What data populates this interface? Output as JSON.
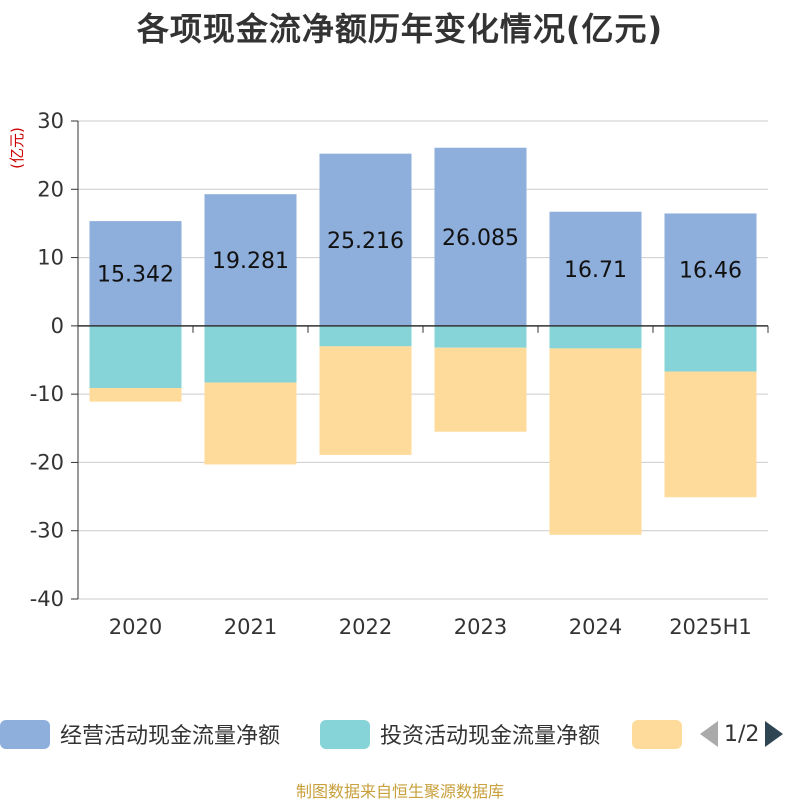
{
  "chart_data": {
    "type": "bar",
    "stacked": true,
    "title": "各项现金流净额历年变化情况(亿元)",
    "ylabel": "(亿元)",
    "categories": [
      "2020",
      "2021",
      "2022",
      "2023",
      "2024",
      "2025H1"
    ],
    "ylim": [
      -40,
      30
    ],
    "yticks": [
      30,
      20,
      10,
      0,
      -10,
      -20,
      -30,
      -40
    ],
    "grid": true,
    "legend_position": "bottom",
    "series": [
      {
        "name": "经营活动现金流量净额",
        "color": "#8eaedb",
        "values": [
          15.342,
          19.281,
          25.216,
          26.085,
          16.71,
          16.46
        ],
        "labels": [
          "15.342",
          "19.281",
          "25.216",
          "26.085",
          "16.71",
          "16.46"
        ]
      },
      {
        "name": "投资活动现金流量净额",
        "color": "#86d4d7",
        "values": [
          -9.1,
          -8.3,
          -3.0,
          -3.2,
          -3.3,
          -6.7
        ]
      },
      {
        "name": "",
        "color": "#ffdb9b",
        "values": [
          -2.0,
          -12.0,
          -15.9,
          -12.3,
          -27.3,
          -18.4
        ]
      }
    ]
  },
  "legend": {
    "items": [
      "经营活动现金流量净额",
      "投资活动现金流量净额",
      ""
    ],
    "pager": "1/2"
  },
  "source": "制图数据来自恒生聚源数据库"
}
